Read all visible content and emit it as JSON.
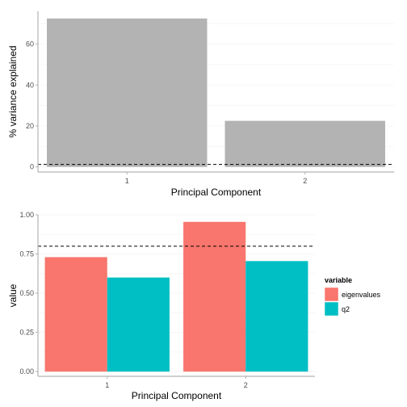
{
  "chart_data": [
    {
      "type": "bar",
      "xlabel": "Principal Component",
      "ylabel": "% variance explained",
      "categories": [
        "1",
        "2"
      ],
      "values": [
        72.5,
        22.5
      ],
      "ylim": [
        -2.5,
        76
      ],
      "yticks": [
        0,
        20,
        40,
        60
      ],
      "reference_line": 1.2,
      "bar_color": "#b3b3b3",
      "grid": true,
      "legend": "none"
    },
    {
      "type": "bar",
      "xlabel": "Principal Component",
      "ylabel": "value",
      "categories": [
        "1",
        "2"
      ],
      "series": [
        {
          "name": "eigenvalues",
          "values": [
            0.73,
            0.955
          ],
          "color": "#f8766d"
        },
        {
          "name": "q2",
          "values": [
            0.6,
            0.705
          ],
          "color": "#00bfc4"
        }
      ],
      "ylim": [
        -0.03,
        1.0
      ],
      "yticks": [
        "0.00",
        "0.25",
        "0.50",
        "0.75",
        "1.00"
      ],
      "reference_line": 0.8,
      "grid": true,
      "legend": "right",
      "legend_title": "variable"
    }
  ]
}
